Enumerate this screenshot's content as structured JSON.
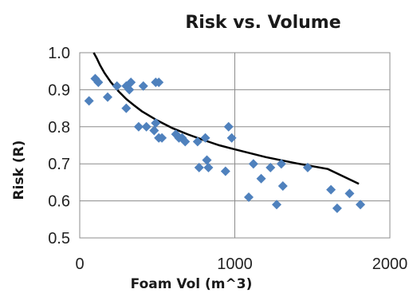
{
  "chart_data": {
    "type": "scatter",
    "title": "Risk vs. Volume",
    "xlabel": "Foam Vol (m^3)",
    "ylabel": "Risk (R)",
    "xlim": [
      0,
      2000
    ],
    "ylim": [
      0.5,
      1.0
    ],
    "x_ticks": [
      "0",
      "1000",
      "2000"
    ],
    "y_ticks": [
      "0.5",
      "0.6",
      "0.7",
      "0.8",
      "0.9",
      "1.0"
    ],
    "grid": true,
    "legend": "none",
    "marker": "diamond",
    "point_color": "#4f81bd",
    "trendline_color": "#000000",
    "points": [
      {
        "x": 60,
        "y": 0.87
      },
      {
        "x": 100,
        "y": 0.93
      },
      {
        "x": 120,
        "y": 0.92
      },
      {
        "x": 180,
        "y": 0.88
      },
      {
        "x": 240,
        "y": 0.91
      },
      {
        "x": 300,
        "y": 0.85
      },
      {
        "x": 300,
        "y": 0.91
      },
      {
        "x": 320,
        "y": 0.9
      },
      {
        "x": 330,
        "y": 0.92
      },
      {
        "x": 380,
        "y": 0.8
      },
      {
        "x": 410,
        "y": 0.91
      },
      {
        "x": 430,
        "y": 0.8
      },
      {
        "x": 480,
        "y": 0.79
      },
      {
        "x": 490,
        "y": 0.81
      },
      {
        "x": 490,
        "y": 0.92
      },
      {
        "x": 510,
        "y": 0.92
      },
      {
        "x": 510,
        "y": 0.77
      },
      {
        "x": 530,
        "y": 0.77
      },
      {
        "x": 620,
        "y": 0.78
      },
      {
        "x": 640,
        "y": 0.77
      },
      {
        "x": 660,
        "y": 0.77
      },
      {
        "x": 680,
        "y": 0.76
      },
      {
        "x": 760,
        "y": 0.76
      },
      {
        "x": 770,
        "y": 0.69
      },
      {
        "x": 810,
        "y": 0.77
      },
      {
        "x": 820,
        "y": 0.71
      },
      {
        "x": 830,
        "y": 0.69
      },
      {
        "x": 940,
        "y": 0.68
      },
      {
        "x": 960,
        "y": 0.8
      },
      {
        "x": 980,
        "y": 0.77
      },
      {
        "x": 1090,
        "y": 0.61
      },
      {
        "x": 1120,
        "y": 0.7
      },
      {
        "x": 1170,
        "y": 0.66
      },
      {
        "x": 1230,
        "y": 0.69
      },
      {
        "x": 1270,
        "y": 0.59
      },
      {
        "x": 1300,
        "y": 0.7
      },
      {
        "x": 1310,
        "y": 0.64
      },
      {
        "x": 1470,
        "y": 0.69
      },
      {
        "x": 1620,
        "y": 0.63
      },
      {
        "x": 1660,
        "y": 0.58
      },
      {
        "x": 1740,
        "y": 0.62
      },
      {
        "x": 1810,
        "y": 0.59
      }
    ],
    "trendline": {
      "type": "logarithmic",
      "x": [
        90,
        110,
        130,
        160,
        200,
        250,
        300,
        350,
        400,
        500,
        600,
        700,
        800,
        900,
        1000,
        1200,
        1400,
        1600,
        1800
      ],
      "y": [
        1.0,
        0.985,
        0.967,
        0.945,
        0.921,
        0.896,
        0.875,
        0.858,
        0.842,
        0.817,
        0.796,
        0.779,
        0.764,
        0.75,
        0.739,
        0.718,
        0.701,
        0.686,
        0.646
      ]
    }
  }
}
